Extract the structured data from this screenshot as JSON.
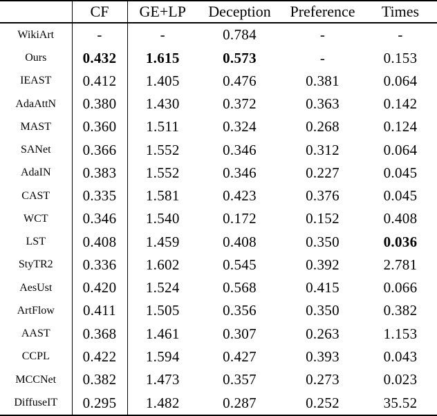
{
  "colors": {
    "text": "#000000",
    "background": "#ffffff",
    "rule": "#000000"
  },
  "table": {
    "header": [
      "",
      "CF",
      "GE+LP",
      "Deception",
      "Preference",
      "Times"
    ],
    "rows": [
      {
        "method": "WikiArt",
        "values": [
          "-",
          "-",
          "0.784",
          "-",
          "-"
        ],
        "bold": []
      },
      {
        "method": "Ours",
        "values": [
          "0.432",
          "1.615",
          "0.573",
          "-",
          "0.153"
        ],
        "bold": [
          0,
          1,
          2
        ]
      },
      {
        "method": "IEAST",
        "values": [
          "0.412",
          "1.405",
          "0.476",
          "0.381",
          "0.064"
        ],
        "bold": []
      },
      {
        "method": "AdaAttN",
        "values": [
          "0.380",
          "1.430",
          "0.372",
          "0.363",
          "0.142"
        ],
        "bold": []
      },
      {
        "method": "MAST",
        "values": [
          "0.360",
          "1.511",
          "0.324",
          "0.268",
          "0.124"
        ],
        "bold": []
      },
      {
        "method": "SANet",
        "values": [
          "0.366",
          "1.552",
          "0.346",
          "0.312",
          "0.064"
        ],
        "bold": []
      },
      {
        "method": "AdaIN",
        "values": [
          "0.383",
          "1.552",
          "0.346",
          "0.227",
          "0.045"
        ],
        "bold": []
      },
      {
        "method": "CAST",
        "values": [
          "0.335",
          "1.581",
          "0.423",
          "0.376",
          "0.045"
        ],
        "bold": []
      },
      {
        "method": "WCT",
        "values": [
          "0.346",
          "1.540",
          "0.172",
          "0.152",
          "0.408"
        ],
        "bold": []
      },
      {
        "method": "LST",
        "values": [
          "0.408",
          "1.459",
          "0.408",
          "0.350",
          "0.036"
        ],
        "bold": [
          4
        ]
      },
      {
        "method": "StyTR2",
        "values": [
          "0.336",
          "1.602",
          "0.545",
          "0.392",
          "2.781"
        ],
        "bold": []
      },
      {
        "method": "AesUst",
        "values": [
          "0.420",
          "1.524",
          "0.568",
          "0.415",
          "0.066"
        ],
        "bold": []
      },
      {
        "method": "ArtFlow",
        "values": [
          "0.411",
          "1.505",
          "0.356",
          "0.350",
          "0.382"
        ],
        "bold": []
      },
      {
        "method": "AAST",
        "values": [
          "0.368",
          "1.461",
          "0.307",
          "0.263",
          "1.153"
        ],
        "bold": []
      },
      {
        "method": "CCPL",
        "values": [
          "0.422",
          "1.594",
          "0.427",
          "0.393",
          "0.043"
        ],
        "bold": []
      },
      {
        "method": "MCCNet",
        "values": [
          "0.382",
          "1.473",
          "0.357",
          "0.273",
          "0.023"
        ],
        "bold": []
      },
      {
        "method": "DiffuseIT",
        "values": [
          "0.295",
          "1.482",
          "0.287",
          "0.252",
          "35.52"
        ],
        "bold": []
      }
    ]
  }
}
